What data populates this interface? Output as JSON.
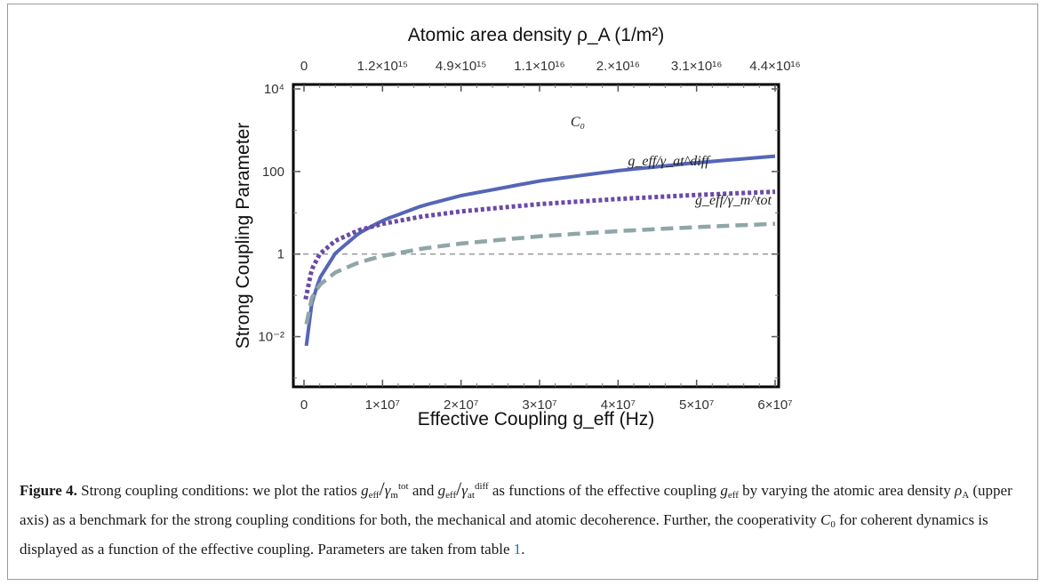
{
  "chart_data": {
    "type": "line",
    "xlabel": "Effective Coupling g_eff (Hz)",
    "ylabel": "Strong Coupling Parameter",
    "top_axis_label": "Atomic area density ρ_A (1/m²)",
    "xlim": [
      0,
      60000000
    ],
    "ylim_log10": [
      -3,
      4
    ],
    "y_scale": "log",
    "x_ticks": [
      {
        "value": 0,
        "label": "0"
      },
      {
        "value": 10000000,
        "label": "1×10⁷"
      },
      {
        "value": 20000000,
        "label": "2×10⁷"
      },
      {
        "value": 30000000,
        "label": "3×10⁷"
      },
      {
        "value": 40000000,
        "label": "4×10⁷"
      },
      {
        "value": 50000000,
        "label": "5×10⁷"
      },
      {
        "value": 60000000,
        "label": "6×10⁷"
      }
    ],
    "top_ticks": [
      {
        "value": 0,
        "label": "0"
      },
      {
        "value": 10000000,
        "label": "1.2×10¹⁵"
      },
      {
        "value": 20000000,
        "label": "4.9×10¹⁵"
      },
      {
        "value": 30000000,
        "label": "1.1×10¹⁶"
      },
      {
        "value": 40000000,
        "label": "2.×10¹⁶"
      },
      {
        "value": 50000000,
        "label": "3.1×10¹⁶"
      },
      {
        "value": 60000000,
        "label": "4.4×10¹⁶"
      }
    ],
    "y_ticks": [
      {
        "value": 10000,
        "label": "10⁴"
      },
      {
        "value": 100,
        "label": "100"
      },
      {
        "value": 1,
        "label": "1"
      },
      {
        "value": 0.01,
        "label": "10⁻²"
      }
    ],
    "reference_line": {
      "y": 1,
      "style": "dashed",
      "color": "#888888"
    },
    "series": [
      {
        "name": "C₀",
        "style": "solid",
        "color": "#5566b8",
        "x": [
          300000,
          1000000,
          2000000,
          4000000,
          7000000,
          10000000,
          15000000,
          20000000,
          30000000,
          40000000,
          50000000,
          60000000
        ],
        "y": [
          0.006,
          0.065,
          0.26,
          1.05,
          3.2,
          6.5,
          14.7,
          26,
          59,
          105,
          163,
          235
        ]
      },
      {
        "name": "g_eff/γ_at^diff",
        "style": "dotted",
        "color": "#6a4aa6",
        "x": [
          200000,
          1000000,
          2000000,
          4000000,
          7000000,
          10000000,
          15000000,
          20000000,
          30000000,
          40000000,
          50000000,
          60000000
        ],
        "y": [
          0.08,
          0.43,
          1.0,
          2.1,
          3.8,
          5.4,
          8.1,
          10.8,
          16.2,
          21.6,
          27,
          32.4
        ]
      },
      {
        "name": "g_eff/γ_m^tot",
        "style": "dashed",
        "color": "#8fa6a8",
        "x": [
          300000,
          1000000,
          2000000,
          4000000,
          7000000,
          10000000,
          15000000,
          20000000,
          30000000,
          40000000,
          50000000,
          60000000
        ],
        "y": [
          0.02,
          0.087,
          0.18,
          0.36,
          0.63,
          0.9,
          1.35,
          1.8,
          2.7,
          3.6,
          4.5,
          5.4
        ]
      }
    ]
  },
  "caption": {
    "label": "Figure 4.",
    "text_1": "Strong coupling conditions: we plot the ratios",
    "math_1": "g",
    "text_2": "and",
    "text_3": "as functions of the effective coupling",
    "text_4": "by varying the atomic area density",
    "text_5": "(upper axis) as a benchmark for the strong coupling conditions for both, the mechanical and atomic decoherence. Further, the cooperativity",
    "text_6": "for coherent dynamics is displayed as a function of the effective coupling. Parameters are taken from table",
    "table_ref": "1",
    "end": "."
  }
}
